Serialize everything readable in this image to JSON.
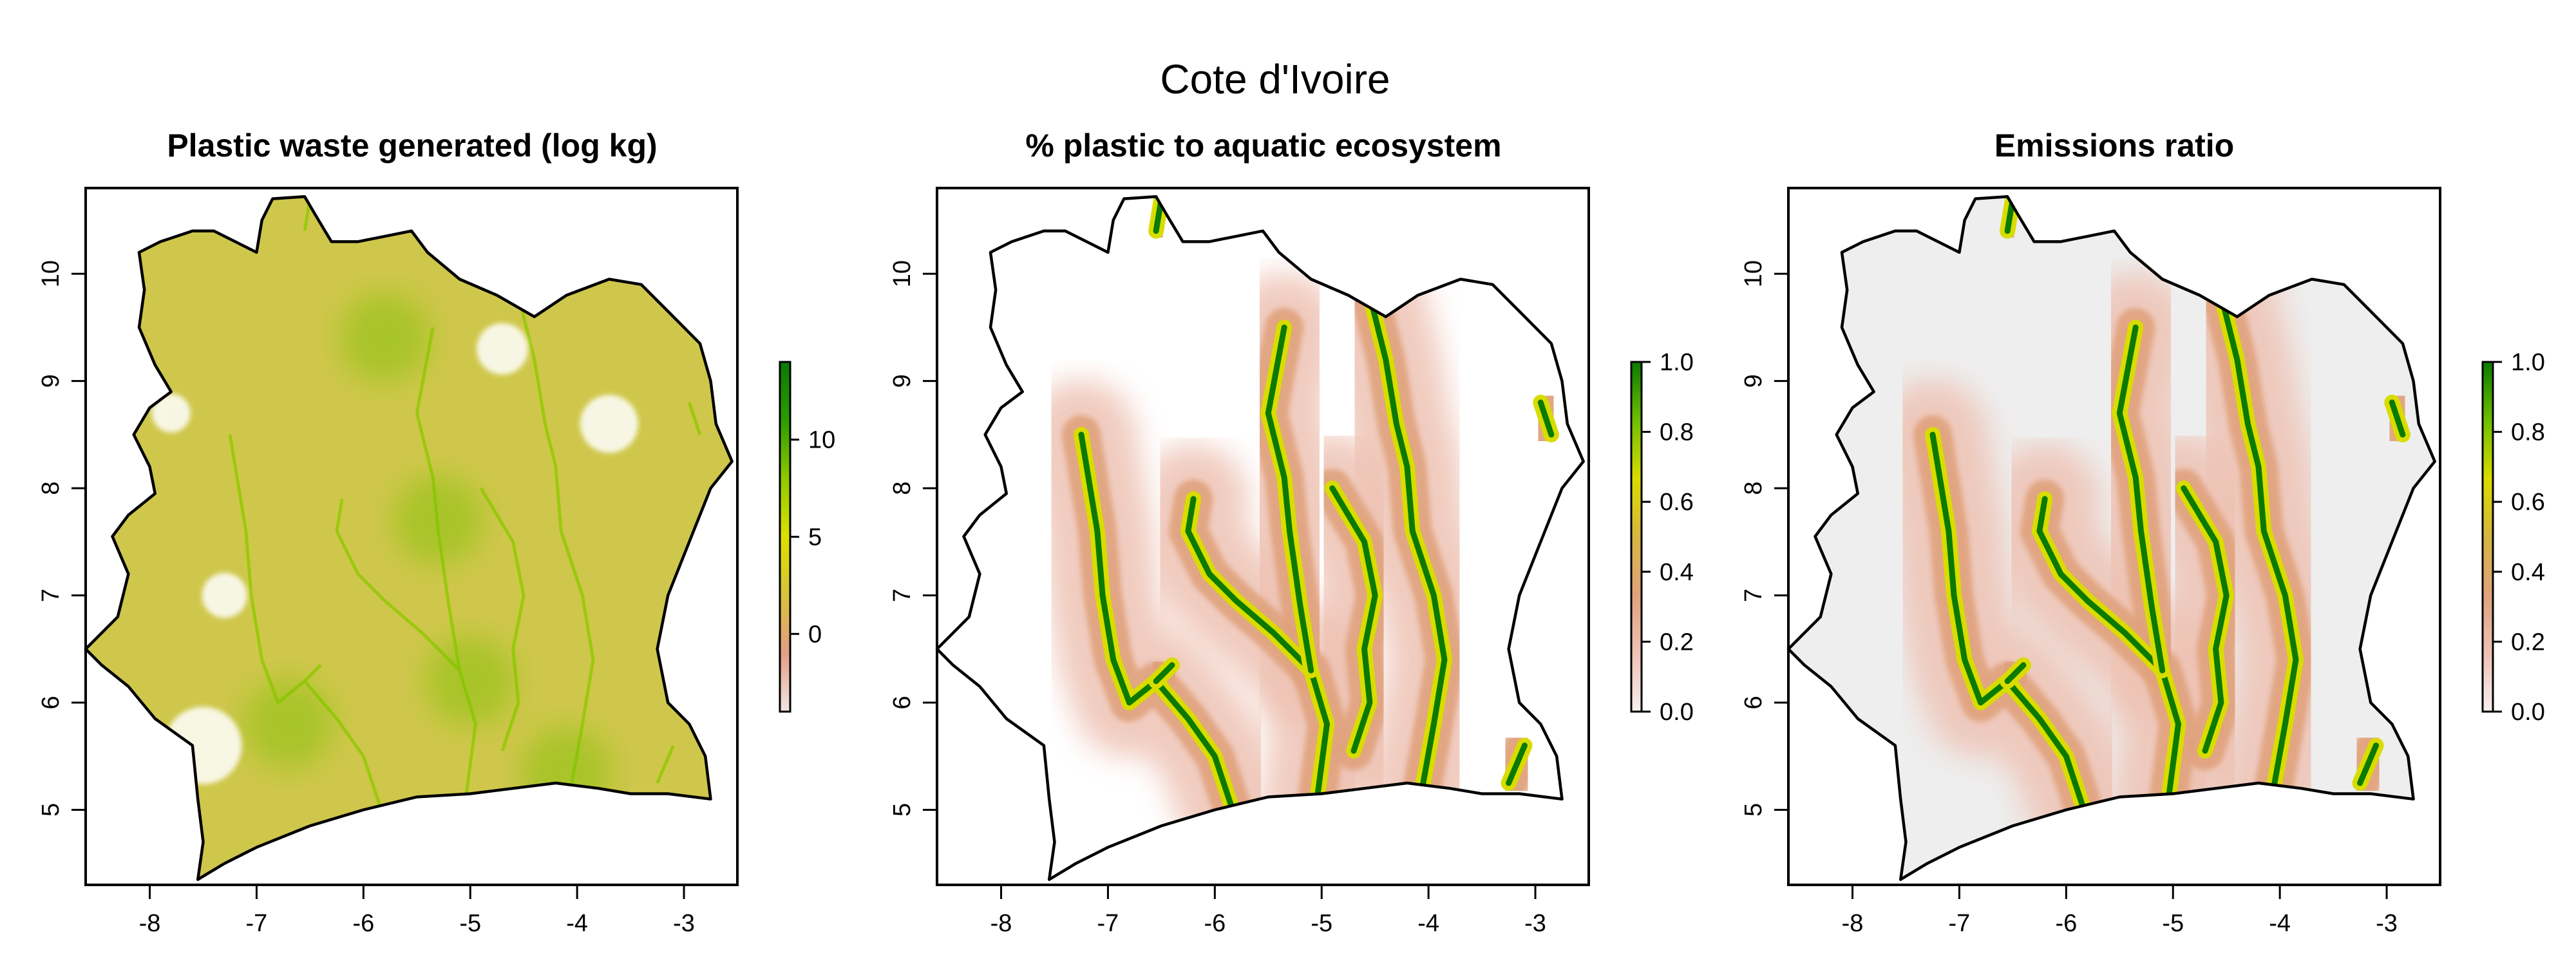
{
  "figure": {
    "title": "Cote d'Ivoire"
  },
  "chart_data": [
    {
      "type": "heatmap",
      "title": "Plastic waste generated (log kg)",
      "xlabel": "",
      "ylabel": "",
      "xlim": [
        -8.6,
        -2.5
      ],
      "ylim": [
        4.3,
        10.8
      ],
      "x_ticks": [
        "-8",
        "-7",
        "-6",
        "-5",
        "-4",
        "-3"
      ],
      "y_ticks": [
        "5",
        "6",
        "7",
        "8",
        "9",
        "10"
      ],
      "colorbar": {
        "range": [
          -4,
          14
        ],
        "ticks": [
          "0",
          "5",
          "10"
        ],
        "tick_values": [
          0,
          5,
          10
        ],
        "colors": [
          "#f2e6e6",
          "#e39e85",
          "#d7c23a",
          "#dde000",
          "#8ec900",
          "#2a9d00",
          "#0a7a00"
        ]
      },
      "fill": "#cfc74b",
      "grid": false,
      "legend": "right"
    },
    {
      "type": "heatmap",
      "title": "% plastic to aquatic ecosystem",
      "xlabel": "",
      "ylabel": "",
      "xlim": [
        -8.6,
        -2.5
      ],
      "ylim": [
        4.3,
        10.8
      ],
      "x_ticks": [
        "-8",
        "-7",
        "-6",
        "-5",
        "-4",
        "-3"
      ],
      "y_ticks": [
        "5",
        "6",
        "7",
        "8",
        "9",
        "10"
      ],
      "colorbar": {
        "range": [
          0,
          1
        ],
        "ticks": [
          "0.0",
          "0.2",
          "0.4",
          "0.6",
          "0.8",
          "1.0"
        ],
        "tick_values": [
          0,
          0.2,
          0.4,
          0.6,
          0.8,
          1.0
        ],
        "colors": [
          "#f7efef",
          "#eec2b4",
          "#e0a27d",
          "#d6b640",
          "#d9dc00",
          "#6fbe00",
          "#0a7a00"
        ]
      },
      "fill": "#ffffff",
      "grid": false,
      "legend": "right"
    },
    {
      "type": "heatmap",
      "title": "Emissions ratio",
      "xlabel": "",
      "ylabel": "",
      "xlim": [
        -8.6,
        -2.5
      ],
      "ylim": [
        4.3,
        10.8
      ],
      "x_ticks": [
        "-8",
        "-7",
        "-6",
        "-5",
        "-4",
        "-3"
      ],
      "y_ticks": [
        "5",
        "6",
        "7",
        "8",
        "9",
        "10"
      ],
      "colorbar": {
        "range": [
          0,
          1
        ],
        "ticks": [
          "0.0",
          "0.2",
          "0.4",
          "0.6",
          "0.8",
          "1.0"
        ],
        "tick_values": [
          0,
          0.2,
          0.4,
          0.6,
          0.8,
          1.0
        ],
        "colors": [
          "#f7efef",
          "#eec2b4",
          "#e0a27d",
          "#d6b640",
          "#d9dc00",
          "#6fbe00",
          "#0a7a00"
        ]
      },
      "fill": "#eeeeee",
      "grid": false,
      "legend": "right"
    }
  ],
  "country_outline": [
    [
      -8.1,
      10.2
    ],
    [
      -7.9,
      10.3
    ],
    [
      -7.6,
      10.4
    ],
    [
      -7.4,
      10.4
    ],
    [
      -7.2,
      10.3
    ],
    [
      -7.0,
      10.2
    ],
    [
      -6.95,
      10.5
    ],
    [
      -6.85,
      10.7
    ],
    [
      -6.55,
      10.72
    ],
    [
      -6.45,
      10.55
    ],
    [
      -6.3,
      10.3
    ],
    [
      -6.05,
      10.3
    ],
    [
      -5.8,
      10.35
    ],
    [
      -5.55,
      10.4
    ],
    [
      -5.4,
      10.2
    ],
    [
      -5.1,
      9.95
    ],
    [
      -4.75,
      9.8
    ],
    [
      -4.4,
      9.6
    ],
    [
      -4.1,
      9.8
    ],
    [
      -3.7,
      9.95
    ],
    [
      -3.4,
      9.9
    ],
    [
      -3.15,
      9.65
    ],
    [
      -2.85,
      9.35
    ],
    [
      -2.75,
      9.0
    ],
    [
      -2.7,
      8.6
    ],
    [
      -2.55,
      8.25
    ],
    [
      -2.75,
      8.0
    ],
    [
      -2.95,
      7.5
    ],
    [
      -3.15,
      7.0
    ],
    [
      -3.25,
      6.5
    ],
    [
      -3.15,
      6.0
    ],
    [
      -2.95,
      5.8
    ],
    [
      -2.8,
      5.5
    ],
    [
      -2.75,
      5.1
    ],
    [
      -3.15,
      5.15
    ],
    [
      -3.5,
      5.15
    ],
    [
      -3.8,
      5.2
    ],
    [
      -4.2,
      5.25
    ],
    [
      -4.6,
      5.2
    ],
    [
      -5.0,
      5.15
    ],
    [
      -5.5,
      5.12
    ],
    [
      -6.0,
      5.0
    ],
    [
      -6.5,
      4.85
    ],
    [
      -7.0,
      4.65
    ],
    [
      -7.3,
      4.5
    ],
    [
      -7.55,
      4.35
    ],
    [
      -7.5,
      4.7
    ],
    [
      -7.55,
      5.1
    ],
    [
      -7.6,
      5.6
    ],
    [
      -7.95,
      5.85
    ],
    [
      -8.2,
      6.15
    ],
    [
      -8.45,
      6.35
    ],
    [
      -8.6,
      6.5
    ],
    [
      -8.3,
      6.8
    ],
    [
      -8.2,
      7.2
    ],
    [
      -8.35,
      7.55
    ],
    [
      -8.2,
      7.75
    ],
    [
      -7.95,
      7.95
    ],
    [
      -8.0,
      8.2
    ],
    [
      -8.15,
      8.5
    ],
    [
      -8.0,
      8.75
    ],
    [
      -7.8,
      8.9
    ],
    [
      -7.95,
      9.15
    ],
    [
      -8.1,
      9.5
    ],
    [
      -8.05,
      9.85
    ]
  ],
  "rivers": [
    [
      [
        -5.85,
        5.05
      ],
      [
        -6.0,
        5.5
      ],
      [
        -6.25,
        5.85
      ],
      [
        -6.55,
        6.2
      ],
      [
        -6.8,
        6.0
      ],
      [
        -6.95,
        6.4
      ],
      [
        -7.05,
        7.0
      ],
      [
        -7.1,
        7.6
      ],
      [
        -7.2,
        8.2
      ],
      [
        -7.25,
        8.5
      ]
    ],
    [
      [
        -6.55,
        6.2
      ],
      [
        -6.4,
        6.35
      ]
    ],
    [
      [
        -5.05,
        5.05
      ],
      [
        -4.95,
        5.8
      ],
      [
        -5.1,
        6.3
      ],
      [
        -5.45,
        6.65
      ],
      [
        -5.8,
        6.95
      ],
      [
        -6.05,
        7.2
      ],
      [
        -6.25,
        7.6
      ],
      [
        -6.2,
        7.9
      ]
    ],
    [
      [
        -5.1,
        6.3
      ],
      [
        -5.2,
        6.9
      ],
      [
        -5.3,
        7.6
      ],
      [
        -5.35,
        8.1
      ],
      [
        -5.5,
        8.7
      ],
      [
        -5.35,
        9.5
      ]
    ],
    [
      [
        -4.7,
        5.55
      ],
      [
        -4.55,
        6.0
      ],
      [
        -4.6,
        6.5
      ],
      [
        -4.5,
        7.0
      ],
      [
        -4.6,
        7.5
      ],
      [
        -4.9,
        8.0
      ]
    ],
    [
      [
        -4.05,
        5.25
      ],
      [
        -3.95,
        5.8
      ],
      [
        -3.85,
        6.4
      ],
      [
        -3.95,
        7.0
      ],
      [
        -4.15,
        7.6
      ],
      [
        -4.2,
        8.2
      ],
      [
        -4.3,
        8.6
      ],
      [
        -4.4,
        9.2
      ],
      [
        -4.55,
        9.8
      ]
    ],
    [
      [
        -3.25,
        5.25
      ],
      [
        -3.1,
        5.6
      ]
    ],
    [
      [
        -2.85,
        8.5
      ],
      [
        -2.95,
        8.8
      ]
    ],
    [
      [
        -6.55,
        10.4
      ],
      [
        -6.5,
        10.7
      ]
    ]
  ]
}
